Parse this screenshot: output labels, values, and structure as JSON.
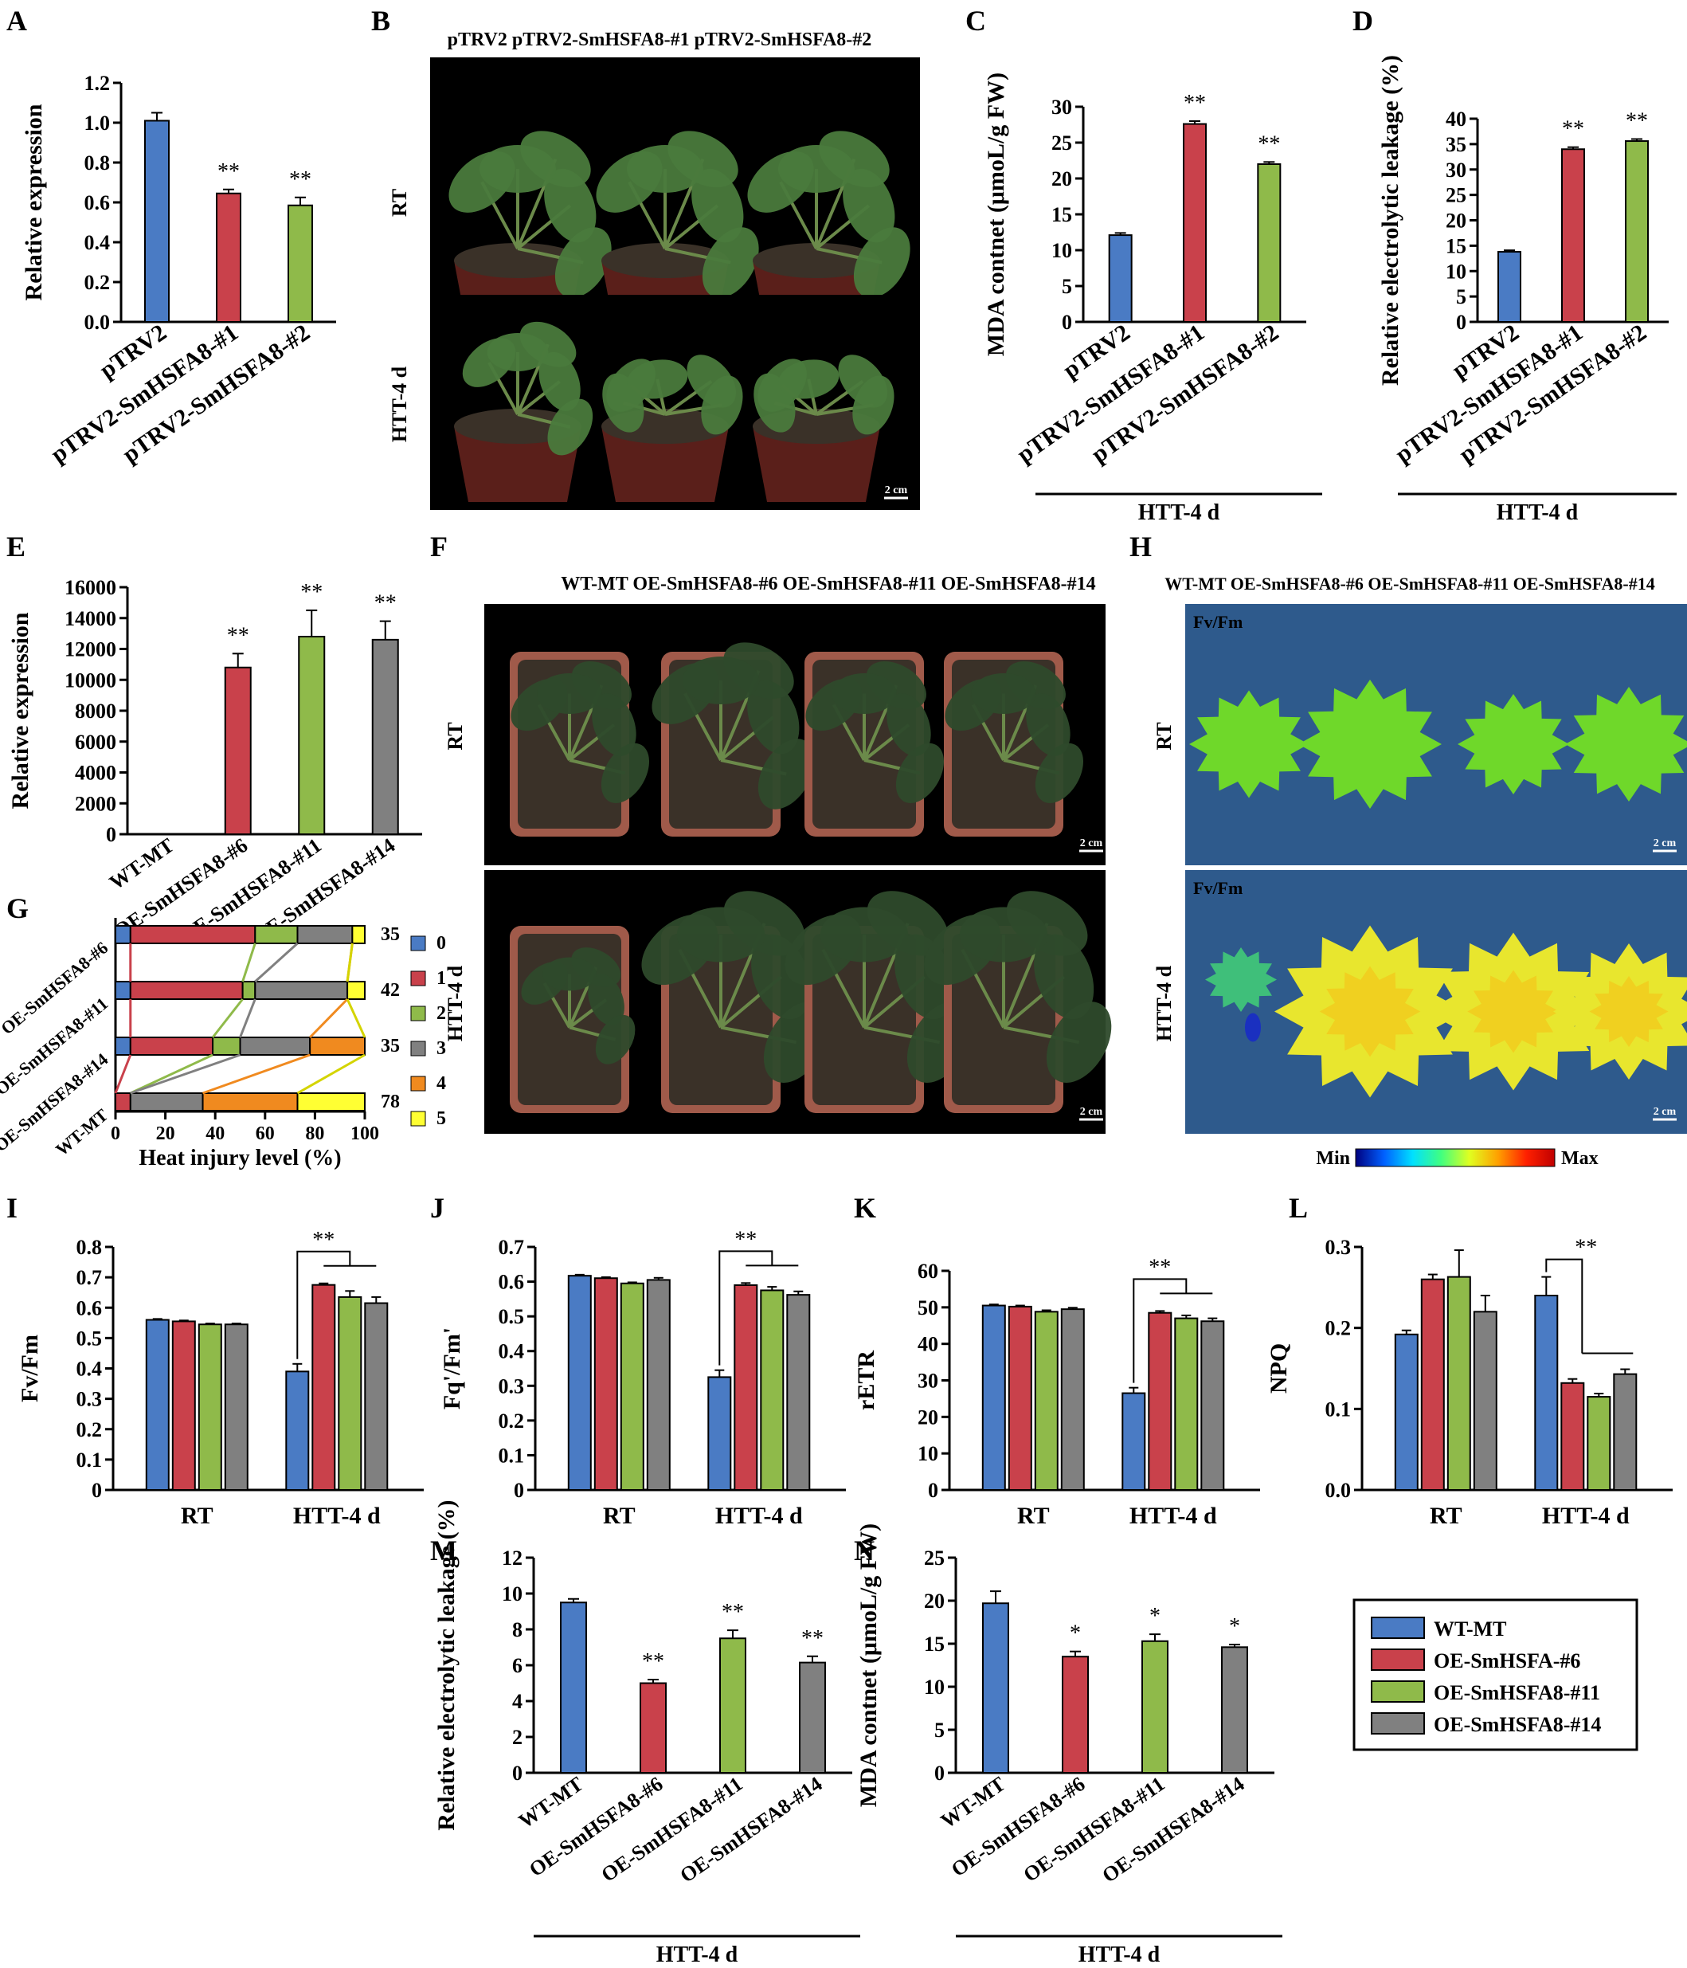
{
  "colors": {
    "blue": "#4a7bc4",
    "red": "#c9414b",
    "green": "#8fba4a",
    "gray": "#808080",
    "levels": [
      "#4a7bc4",
      "#c9414b",
      "#8fba4a",
      "#808080",
      "#f08a1f",
      "#ffff33"
    ],
    "leaf_dark": "#2e4a2b",
    "leaf_green": "#4a7a3c",
    "pot": "#a05a4a",
    "soil": "#3a3128",
    "fluor_bg": "#2e5a8c",
    "fluor_green": "#6fd82a",
    "fluor_yellow": "#e8e62e"
  },
  "chart_data": [
    {
      "panel": "A",
      "type": "bar",
      "ylabel": "Relative expression",
      "ylim": [
        0,
        1.2
      ],
      "ticks": [
        "0.0",
        "0.2",
        "0.4",
        "0.6",
        "0.8",
        "1.0",
        "1.2"
      ],
      "categories": [
        "pTRV2",
        "pTRV2-SmHSFA8-#1",
        "pTRV2-SmHSFA8-#2"
      ],
      "values": [
        1.01,
        0.645,
        0.585
      ],
      "errors": [
        0.04,
        0.02,
        0.04
      ],
      "sig": [
        "",
        "**",
        "**"
      ],
      "group_label": ""
    },
    {
      "panel": "C",
      "type": "bar",
      "ylabel": "MDA contnet (μmoL/g FW)",
      "ylim": [
        0,
        30
      ],
      "ticks": [
        "0",
        "5",
        "10",
        "15",
        "20",
        "25",
        "30"
      ],
      "categories": [
        "pTRV2",
        "pTRV2-SmHSFA8-#1",
        "pTRV2-SmHSFA8-#2"
      ],
      "values": [
        12.1,
        27.6,
        22.0
      ],
      "errors": [
        0.3,
        0.4,
        0.3
      ],
      "sig": [
        "",
        "**",
        "**"
      ],
      "group_label": "HTT-4 d"
    },
    {
      "panel": "D",
      "type": "bar",
      "ylabel": "Relative electrolytic leakage (%)",
      "ylim": [
        0,
        40
      ],
      "ticks": [
        "0",
        "5",
        "10",
        "15",
        "20",
        "25",
        "30",
        "35",
        "40"
      ],
      "categories": [
        "pTRV2",
        "pTRV2-SmHSFA8-#1",
        "pTRV2-SmHSFA8-#2"
      ],
      "values": [
        13.8,
        34.0,
        35.6
      ],
      "errors": [
        0.3,
        0.4,
        0.4
      ],
      "sig": [
        "",
        "**",
        "**"
      ],
      "group_label": "HTT-4 d"
    },
    {
      "panel": "E",
      "type": "bar",
      "ylabel": "Relative expression",
      "ylim": [
        0,
        16000
      ],
      "ticks": [
        "0",
        "2000",
        "4000",
        "6000",
        "8000",
        "10000",
        "12000",
        "14000",
        "16000"
      ],
      "categories": [
        "WT-MT",
        "OE-SmHSFA8-#6",
        "OE-SmHSFA8-#11",
        "OE-SmHSFA8-#14"
      ],
      "values": [
        0,
        10800,
        12800,
        12600
      ],
      "errors": [
        0,
        900,
        1700,
        1200
      ],
      "sig": [
        "",
        "**",
        "**",
        "**"
      ],
      "group_label": ""
    },
    {
      "panel": "G",
      "type": "stacked_bar_horizontal",
      "xlabel": "Heat injury level (%)",
      "xlim": [
        0,
        100
      ],
      "ticks": [
        "0",
        "20",
        "40",
        "60",
        "80",
        "100"
      ],
      "categories": [
        "OE-SmHSFA8-#6",
        "OE-SmHSFA8-#11",
        "OE-SmHSFA8-#14",
        "WT-MT"
      ],
      "totals": [
        "35",
        "42",
        "35",
        "78"
      ],
      "levels": [
        "0",
        "1",
        "2",
        "3",
        "4",
        "5"
      ],
      "segments": [
        [
          6,
          50,
          17,
          22,
          0,
          5
        ],
        [
          6,
          45,
          5,
          37,
          0,
          7
        ],
        [
          6,
          33,
          11,
          28,
          22,
          0
        ],
        [
          0,
          6,
          0,
          29,
          38,
          27
        ]
      ]
    },
    {
      "panel": "I",
      "type": "bar",
      "ylabel": "Fv/Fm",
      "ylim": [
        0,
        0.8
      ],
      "ticks": [
        "0",
        "0.1",
        "0.2",
        "0.3",
        "0.4",
        "0.5",
        "0.6",
        "0.7",
        "0.8"
      ],
      "groups": [
        "RT",
        "HTT-4 d"
      ],
      "series": [
        {
          "name": "WT-MT",
          "values": [
            0.56,
            0.39
          ],
          "errors": [
            0.003,
            0.025
          ]
        },
        {
          "name": "OE-SmHSFA-#6",
          "values": [
            0.555,
            0.675
          ],
          "errors": [
            0.003,
            0.005
          ]
        },
        {
          "name": "OE-SmHSFA8-#11",
          "values": [
            0.545,
            0.635
          ],
          "errors": [
            0.003,
            0.02
          ]
        },
        {
          "name": "OE-SmHSFA8-#14",
          "values": [
            0.545,
            0.615
          ],
          "errors": [
            0.003,
            0.02
          ]
        }
      ],
      "sig": "**"
    },
    {
      "panel": "J",
      "type": "bar",
      "ylabel": "Fq'/Fm'",
      "ylim": [
        0,
        0.7
      ],
      "ticks": [
        "0",
        "0.1",
        "0.2",
        "0.3",
        "0.4",
        "0.5",
        "0.6",
        "0.7"
      ],
      "groups": [
        "RT",
        "HTT-4 d"
      ],
      "series": [
        {
          "name": "WT-MT",
          "values": [
            0.617,
            0.325
          ],
          "errors": [
            0.003,
            0.02
          ]
        },
        {
          "name": "OE-SmHSFA-#6",
          "values": [
            0.61,
            0.59
          ],
          "errors": [
            0.003,
            0.006
          ]
        },
        {
          "name": "OE-SmHSFA8-#11",
          "values": [
            0.595,
            0.575
          ],
          "errors": [
            0.003,
            0.01
          ]
        },
        {
          "name": "OE-SmHSFA8-#14",
          "values": [
            0.605,
            0.562
          ],
          "errors": [
            0.006,
            0.01
          ]
        }
      ],
      "sig": "**"
    },
    {
      "panel": "K",
      "type": "bar",
      "ylabel": "rETR",
      "ylim": [
        0,
        60
      ],
      "ticks": [
        "0",
        "10",
        "20",
        "30",
        "40",
        "50",
        "60"
      ],
      "groups": [
        "RT",
        "HTT-4 d"
      ],
      "series": [
        {
          "name": "WT-MT",
          "values": [
            50.5,
            26.5
          ],
          "errors": [
            0.3,
            1.5
          ]
        },
        {
          "name": "OE-SmHSFA-#6",
          "values": [
            50.2,
            48.5
          ],
          "errors": [
            0.3,
            0.5
          ]
        },
        {
          "name": "OE-SmHSFA8-#11",
          "values": [
            48.8,
            47.0
          ],
          "errors": [
            0.4,
            0.8
          ]
        },
        {
          "name": "OE-SmHSFA8-#14",
          "values": [
            49.5,
            46.2
          ],
          "errors": [
            0.4,
            0.8
          ]
        }
      ],
      "sig": "**"
    },
    {
      "panel": "L",
      "type": "bar",
      "ylabel": "NPQ",
      "ylim": [
        0,
        0.3
      ],
      "ticks": [
        "0.0",
        "0.1",
        "0.2",
        "0.3"
      ],
      "groups": [
        "RT",
        "HTT-4 d"
      ],
      "series": [
        {
          "name": "WT-MT",
          "values": [
            0.192,
            0.24
          ],
          "errors": [
            0.005,
            0.023
          ]
        },
        {
          "name": "OE-SmHSFA-#6",
          "values": [
            0.26,
            0.132
          ],
          "errors": [
            0.006,
            0.005
          ]
        },
        {
          "name": "OE-SmHSFA8-#11",
          "values": [
            0.263,
            0.115
          ],
          "errors": [
            0.033,
            0.004
          ]
        },
        {
          "name": "OE-SmHSFA8-#14",
          "values": [
            0.22,
            0.143
          ],
          "errors": [
            0.02,
            0.006
          ]
        }
      ],
      "sig": "**"
    },
    {
      "panel": "M",
      "type": "bar",
      "ylabel": "Relative electrolytic leakage (%)",
      "ylim": [
        0,
        12
      ],
      "ticks": [
        "0",
        "2",
        "4",
        "6",
        "8",
        "10",
        "12"
      ],
      "categories": [
        "WT-MT",
        "OE-SmHSFA8-#6",
        "OE-SmHSFA8-#11",
        "OE-SmHSFA8-#14"
      ],
      "values": [
        9.5,
        5.0,
        7.5,
        6.15
      ],
      "errors": [
        0.2,
        0.2,
        0.45,
        0.35
      ],
      "sig": [
        "",
        "**",
        "**",
        "**"
      ],
      "group_label": "HTT-4 d"
    },
    {
      "panel": "N",
      "type": "bar",
      "ylabel": "MDA contnet (μmoL/g FW)",
      "ylim": [
        0,
        25
      ],
      "ticks": [
        "0",
        "5",
        "10",
        "15",
        "20",
        "25"
      ],
      "categories": [
        "WT-MT",
        "OE-SmHSFA8-#6",
        "OE-SmHSFA8-#11",
        "OE-SmHSFA8-#14"
      ],
      "values": [
        19.7,
        13.5,
        15.3,
        14.6
      ],
      "errors": [
        1.4,
        0.6,
        0.8,
        0.3
      ],
      "sig": [
        "",
        "*",
        "*",
        "*"
      ],
      "group_label": "HTT-4 d"
    }
  ],
  "photos": {
    "B": {
      "header": "pTRV2    pTRV2-SmHSFA8-#1  pTRV2-SmHSFA8-#2",
      "rows": [
        "RT",
        "HTT-4 d"
      ],
      "scale": "2 cm"
    },
    "F": {
      "header": "WT-MT    OE-SmHSFA8-#6  OE-SmHSFA8-#11  OE-SmHSFA8-#14",
      "rows": [
        "RT",
        "HTT-4 d"
      ],
      "scale": "2 cm"
    },
    "H": {
      "header": "WT-MT  OE-SmHSFA8-#6  OE-SmHSFA8-#11  OE-SmHSFA8-#14",
      "rows": [
        "RT",
        "HTT-4 d"
      ],
      "scale": "2 cm",
      "param": "Fv/Fm",
      "colorbar_min": "Min",
      "colorbar_max": "Max"
    }
  },
  "legend": [
    "WT-MT",
    "OE-SmHSFA-#6",
    "OE-SmHSFA8-#11",
    "OE-SmHSFA8-#14"
  ]
}
